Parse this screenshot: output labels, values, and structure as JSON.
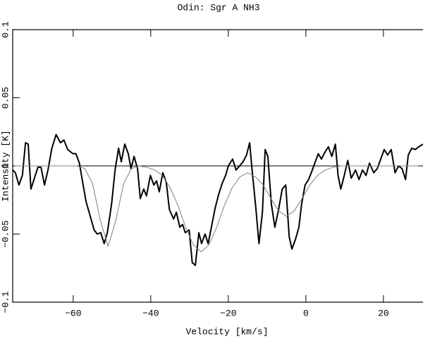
{
  "chart_data": {
    "type": "line",
    "title": "Odin:   Sgr A  NH3",
    "x_label": "Velocity  [km/s]",
    "y_label": "Intensity [K]",
    "xlim": [
      -75.6,
      30.2
    ],
    "ylim": [
      -0.1,
      0.1
    ],
    "xticks": [
      {
        "value": -60,
        "label": "−60"
      },
      {
        "value": -40,
        "label": "−40"
      },
      {
        "value": -20,
        "label": "−20"
      },
      0,
      20
    ],
    "yticks": [
      {
        "value": -0.1,
        "label": "−0.1"
      },
      {
        "value": -0.05,
        "label": "−0.05"
      },
      0,
      0.05,
      0.1
    ],
    "hline": 0,
    "series": [
      {
        "color": "#000000",
        "width": 2,
        "x": [
          -75.6,
          -74.9,
          -74.0,
          -73.1,
          -72.3,
          -71.6,
          -70.9,
          -70.0,
          -69.1,
          -68.3,
          -67.4,
          -66.5,
          -65.5,
          -64.4,
          -63.3,
          -62.4,
          -61.4,
          -60.1,
          -59.3,
          -58.4,
          -57.5,
          -56.7,
          -55.7,
          -54.6,
          -53.8,
          -52.9,
          -52.0,
          -51.2,
          -50.1,
          -49.2,
          -48.3,
          -47.6,
          -46.7,
          -45.8,
          -45.1,
          -44.3,
          -43.4,
          -42.7,
          -41.8,
          -41.1,
          -40.1,
          -39.2,
          -38.5,
          -37.8,
          -36.9,
          -36.0,
          -35.2,
          -34.1,
          -33.4,
          -32.5,
          -31.8,
          -31.1,
          -30.1,
          -29.3,
          -28.5,
          -27.6,
          -26.9,
          -26.0,
          -25.2,
          -24.3,
          -23.4,
          -22.5,
          -21.6,
          -20.7,
          -20.0,
          -18.9,
          -18.0,
          -17.1,
          -16.2,
          -15.3,
          -14.5,
          -13.8,
          -12.9,
          -12.1,
          -11.2,
          -10.5,
          -9.8,
          -8.9,
          -8.0,
          -7.1,
          -6.1,
          -5.2,
          -4.3,
          -3.6,
          -2.7,
          -1.8,
          -1.1,
          -0.2,
          0.7,
          1.4,
          2.3,
          3.2,
          4.0,
          4.9,
          5.8,
          6.7,
          7.6,
          8.3,
          9.0,
          9.9,
          10.8,
          11.7,
          12.8,
          13.7,
          14.6,
          15.5,
          16.4,
          17.5,
          18.4,
          19.3,
          20.2,
          21.1,
          22.0,
          23.0,
          23.9,
          24.8,
          25.7,
          26.4,
          27.3,
          28.2,
          29.1,
          30.2
        ],
        "values": [
          -0.003,
          -0.005,
          -0.014,
          -0.007,
          0.017,
          0.016,
          -0.017,
          -0.009,
          -0.001,
          -0.001,
          -0.014,
          -0.003,
          0.013,
          0.023,
          0.017,
          0.019,
          0.012,
          0.009,
          0.009,
          0.002,
          -0.013,
          -0.026,
          -0.036,
          -0.047,
          -0.05,
          -0.049,
          -0.057,
          -0.049,
          -0.028,
          -0.003,
          0.013,
          0.003,
          0.016,
          0.009,
          -0.002,
          0.007,
          -0.002,
          -0.024,
          -0.017,
          -0.022,
          -0.007,
          -0.014,
          -0.011,
          -0.019,
          -0.005,
          -0.012,
          -0.032,
          -0.039,
          -0.034,
          -0.045,
          -0.043,
          -0.049,
          -0.047,
          -0.071,
          -0.073,
          -0.049,
          -0.057,
          -0.05,
          -0.057,
          -0.044,
          -0.031,
          -0.021,
          -0.013,
          -0.007,
          0,
          0.005,
          -0.003,
          0,
          0.003,
          0.008,
          0.017,
          -0.005,
          -0.031,
          -0.057,
          -0.034,
          0.012,
          0.007,
          -0.028,
          -0.045,
          -0.033,
          -0.017,
          -0.014,
          -0.052,
          -0.061,
          -0.054,
          -0.045,
          -0.028,
          -0.014,
          -0.01,
          -0.005,
          0.002,
          0.009,
          0.005,
          0.01,
          0.014,
          0.007,
          0.016,
          -0.007,
          -0.017,
          -0.007,
          0.004,
          -0.009,
          -0.003,
          -0.01,
          -0.003,
          -0.007,
          0.002,
          -0.005,
          -0.002,
          0.005,
          0.012,
          0.008,
          0.012,
          -0.005,
          0,
          -0.002,
          -0.01,
          0.008,
          0.013,
          0.012,
          0.014,
          0.016
        ]
      },
      {
        "color": "#808080",
        "width": 1,
        "x": [
          -75,
          -73,
          -71,
          -69,
          -67,
          -65,
          -63,
          -61,
          -59,
          -57,
          -55,
          -53,
          -51,
          -49,
          -47,
          -45,
          -43,
          -41,
          -39,
          -37,
          -35,
          -33,
          -31,
          -29,
          -27,
          -25,
          -23,
          -21,
          -19,
          -17,
          -15,
          -13,
          -11,
          -9,
          -7,
          -5,
          -3,
          -1,
          1,
          3,
          5,
          7,
          9,
          11,
          13,
          15,
          17,
          19,
          21,
          23,
          25,
          27,
          29
        ],
        "values": [
          0,
          0,
          0,
          0,
          0,
          0,
          0,
          0,
          0,
          -0.002,
          -0.013,
          -0.04,
          -0.059,
          -0.04,
          -0.013,
          -0.002,
          0,
          -0.001,
          -0.003,
          -0.007,
          -0.016,
          -0.029,
          -0.045,
          -0.058,
          -0.063,
          -0.058,
          -0.045,
          -0.029,
          -0.016,
          -0.008,
          -0.005,
          -0.008,
          -0.014,
          -0.024,
          -0.033,
          -0.037,
          -0.033,
          -0.024,
          -0.014,
          -0.007,
          -0.003,
          -0.001,
          0,
          0,
          0,
          0,
          0,
          0,
          0,
          0,
          0,
          0,
          0
        ]
      }
    ]
  }
}
